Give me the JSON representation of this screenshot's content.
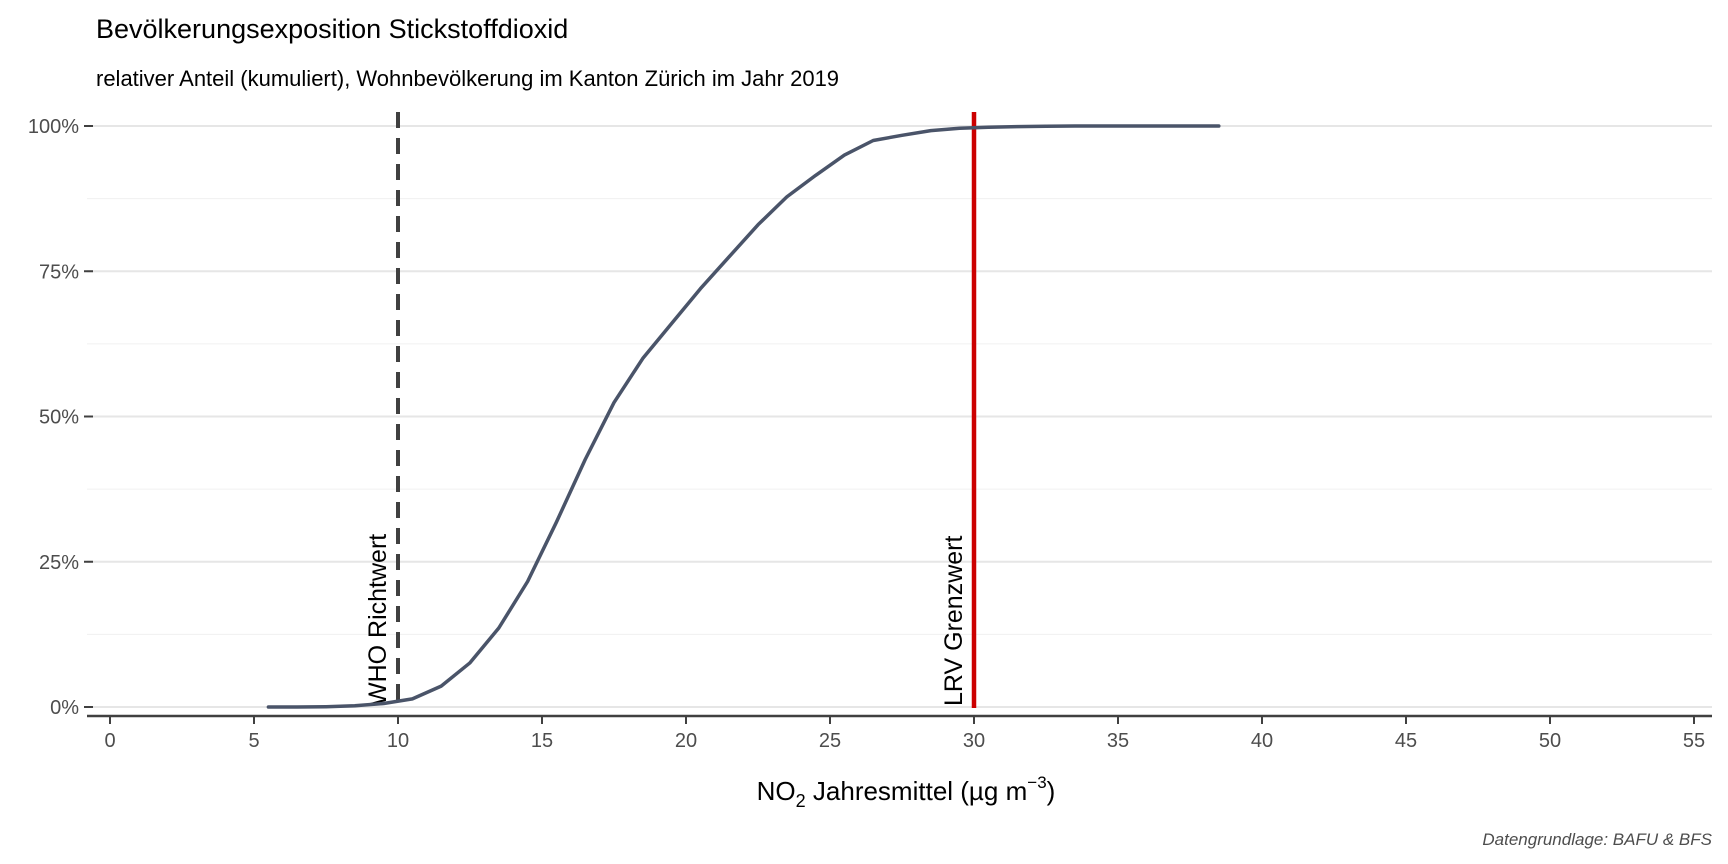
{
  "chart_data": {
    "type": "line",
    "title": "Bevölkerungsexposition Stickstoffdioxid",
    "subtitle": "relativer Anteil (kumuliert), Wohnbevölkerung im Kanton Zürich im Jahr 2019",
    "xlabel": {
      "prefix": "NO",
      "subscript": "2",
      "middle": " Jahresmittel (µg m",
      "superscript": "−3",
      "suffix": ")"
    },
    "ylabel": "",
    "caption": "Datengrundlage: BAFU & BFS",
    "xlim": [
      0,
      55
    ],
    "ylim": [
      0,
      1
    ],
    "x_ticks": [
      0,
      5,
      10,
      15,
      20,
      25,
      30,
      35,
      40,
      45,
      50,
      55
    ],
    "x_tick_labels": [
      "0",
      "5",
      "10",
      "15",
      "20",
      "25",
      "30",
      "35",
      "40",
      "45",
      "50",
      "55"
    ],
    "y_ticks": [
      0,
      0.25,
      0.5,
      0.75,
      1
    ],
    "y_tick_labels": [
      "0%",
      "25%",
      "50%",
      "75%",
      "100%"
    ],
    "y_minor_ticks": [
      0.125,
      0.375,
      0.625,
      0.875
    ],
    "grid": true,
    "series": [
      {
        "color": "#4a5469",
        "x": [
          5.5,
          6.5,
          7.5,
          8.5,
          9.5,
          10.5,
          11.5,
          12.5,
          13.5,
          14.5,
          15.5,
          16.5,
          17.5,
          18.5,
          19.5,
          20.5,
          21.5,
          22.5,
          23.5,
          24.5,
          25.5,
          26.5,
          27.5,
          28.5,
          29.5,
          30.5,
          31.5,
          32.5,
          33.5,
          34.5,
          35.5,
          36.5,
          37.5,
          38.5
        ],
        "y": [
          0.0,
          0.0,
          0.0005,
          0.002,
          0.006,
          0.014,
          0.036,
          0.076,
          0.136,
          0.216,
          0.318,
          0.426,
          0.524,
          0.6,
          0.66,
          0.72,
          0.775,
          0.83,
          0.878,
          0.915,
          0.95,
          0.975,
          0.984,
          0.992,
          0.996,
          0.998,
          0.999,
          0.9995,
          1.0,
          1.0,
          1.0,
          1.0,
          1.0,
          1.0
        ]
      }
    ],
    "reference_lines": [
      {
        "x": 10,
        "label": "WHO Richtwert",
        "color": "#404040",
        "style": "dashed"
      },
      {
        "x": 30,
        "label": "LRV Grenzwert",
        "color": "#cc0000",
        "style": "solid"
      }
    ]
  }
}
